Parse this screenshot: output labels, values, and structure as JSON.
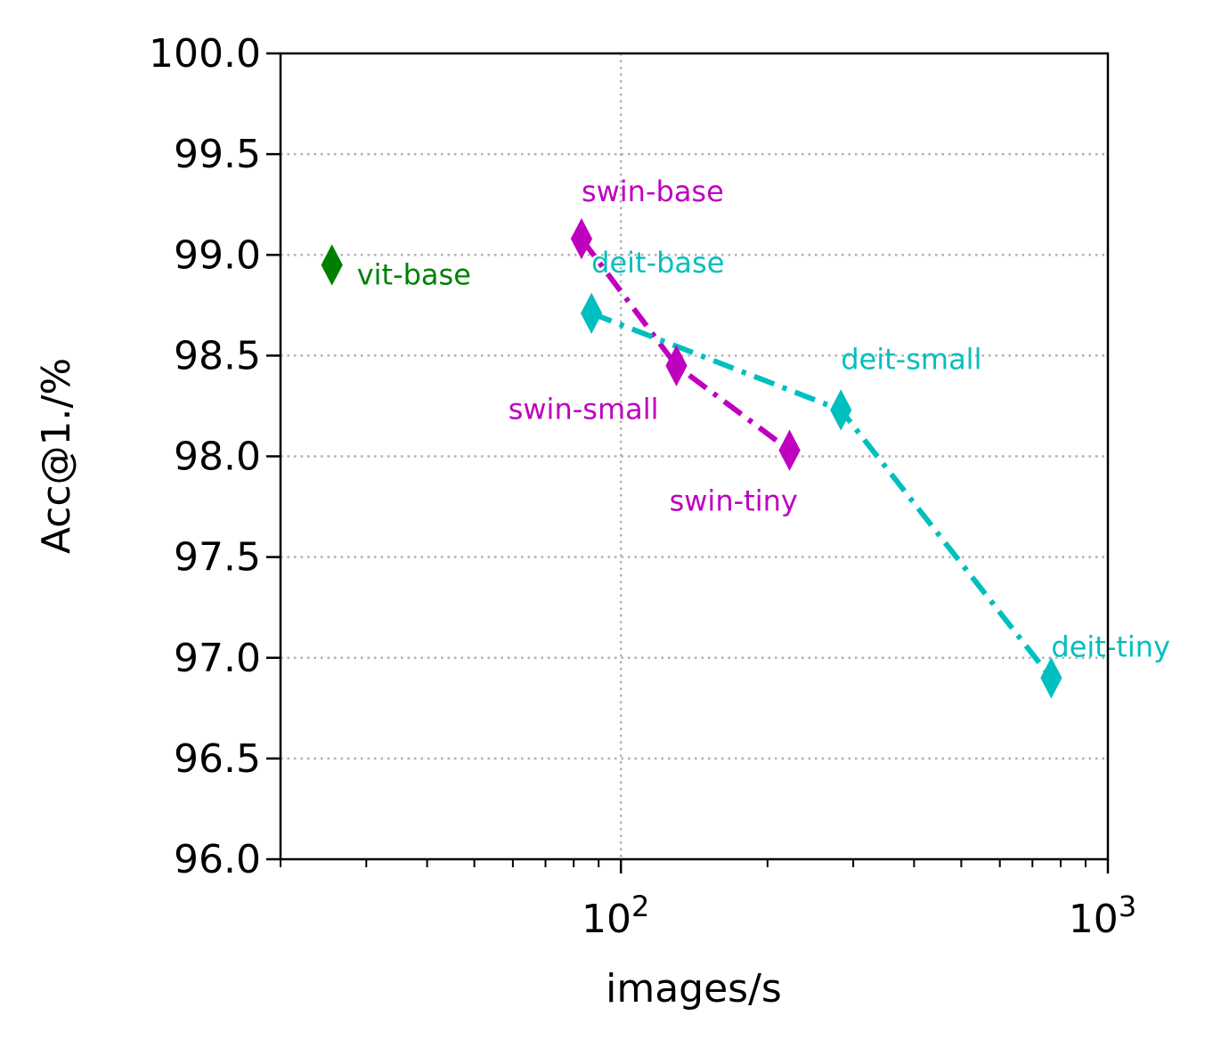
{
  "chart_data": {
    "type": "scatter",
    "xlabel": "images/s",
    "ylabel": "Acc@1./%",
    "xscale": "log",
    "xlim": [
      20,
      1000
    ],
    "ylim": [
      96.0,
      100.0
    ],
    "grid": true,
    "yticks": [
      "96.0",
      "96.5",
      "97.0",
      "97.5",
      "98.0",
      "98.5",
      "99.0",
      "99.5",
      "100.0"
    ],
    "xticks": [
      {
        "base": "10",
        "exp": "2",
        "value": 100
      },
      {
        "base": "10",
        "exp": "3",
        "value": 1000
      }
    ],
    "series": [
      {
        "color": "#bf00bf",
        "line_style": "dashdot",
        "marker": "diamond",
        "points": [
          {
            "label": "swin-base",
            "x": 83,
            "y": 99.08
          },
          {
            "label": "swin-small",
            "x": 130,
            "y": 98.45
          },
          {
            "label": "swin-tiny",
            "x": 222,
            "y": 98.03
          }
        ]
      },
      {
        "color": "#00bfbf",
        "line_style": "dashdot",
        "marker": "diamond",
        "points": [
          {
            "label": "deit-base",
            "x": 87,
            "y": 98.71
          },
          {
            "label": "deit-small",
            "x": 283,
            "y": 98.23
          },
          {
            "label": "deit-tiny",
            "x": 765,
            "y": 96.9
          }
        ]
      },
      {
        "color": "#008000",
        "line_style": "none",
        "marker": "diamond",
        "points": [
          {
            "label": "vit-base",
            "x": 25.5,
            "y": 98.95
          }
        ]
      }
    ]
  }
}
